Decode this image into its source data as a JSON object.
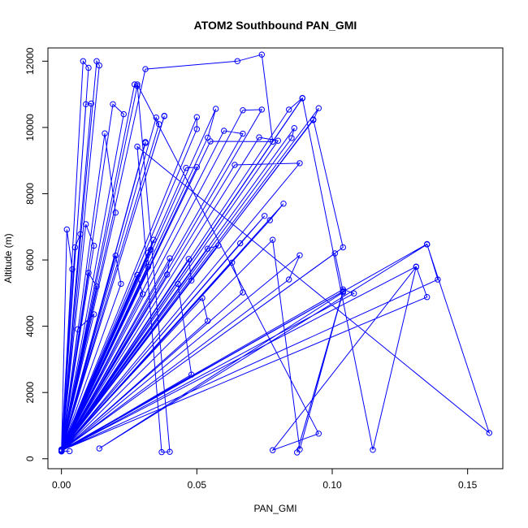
{
  "chart_data": {
    "type": "line",
    "title": "ATOM2 Southbound PAN_GMI",
    "xlabel": "PAN_GMI",
    "ylabel": "Altitude (m)",
    "xlim": [
      -0.005,
      0.163
    ],
    "ylim": [
      -300,
      12400
    ],
    "x_ticks": [
      0.0,
      0.05,
      0.1,
      0.15
    ],
    "x_tick_labels": [
      "0.00",
      "0.05",
      "0.10",
      "0.15"
    ],
    "y_ticks": [
      0,
      2000,
      4000,
      6000,
      8000,
      10000,
      12000
    ],
    "y_tick_labels": [
      "0",
      "2000",
      "4000",
      "6000",
      "8000",
      "10000",
      "12000"
    ],
    "grid": false,
    "legend": "none",
    "line_color": "#0000ff",
    "marker": "open-circle",
    "series": [
      {
        "points": [
          [
            0.0,
            250
          ],
          [
            0.008,
            12000
          ],
          [
            0.01,
            11800
          ],
          [
            0.0,
            280
          ],
          [
            0.013,
            12000
          ],
          [
            0.014,
            11870
          ],
          [
            0.0,
            230
          ],
          [
            0.009,
            10700
          ],
          [
            0.011,
            10720
          ],
          [
            0.0,
            260
          ],
          [
            0.019,
            10700
          ],
          [
            0.023,
            10400
          ],
          [
            0.0,
            240
          ],
          [
            0.027,
            11300
          ],
          [
            0.028,
            11250
          ],
          [
            0.0,
            270
          ],
          [
            0.031,
            11760
          ],
          [
            0.065,
            12000
          ],
          [
            0.074,
            12200
          ],
          [
            0.078,
            9570
          ],
          [
            0.055,
            9580
          ],
          [
            0.0,
            220
          ],
          [
            0.035,
            10300
          ],
          [
            0.036,
            10100
          ],
          [
            0.0,
            250
          ],
          [
            0.05,
            10310
          ],
          [
            0.05,
            9950
          ],
          [
            0.0,
            260
          ],
          [
            0.054,
            9690
          ],
          [
            0.057,
            10560
          ],
          [
            0.0,
            240
          ],
          [
            0.067,
            10520
          ],
          [
            0.074,
            10540
          ],
          [
            0.0,
            230
          ],
          [
            0.084,
            10540
          ],
          [
            0.089,
            10890
          ],
          [
            0.0,
            250
          ],
          [
            0.095,
            10580
          ],
          [
            0.093,
            10220
          ],
          [
            0.0,
            270
          ],
          [
            0.086,
            9980
          ],
          [
            0.085,
            9680
          ],
          [
            0.0,
            260
          ],
          [
            0.08,
            9600
          ],
          [
            0.073,
            9700
          ],
          [
            0.0,
            240
          ],
          [
            0.067,
            9810
          ],
          [
            0.06,
            9900
          ],
          [
            0.0,
            250
          ],
          [
            0.05,
            8800
          ],
          [
            0.046,
            8780
          ],
          [
            0.0,
            230
          ],
          [
            0.064,
            8870
          ],
          [
            0.088,
            8920
          ],
          [
            0.0,
            240
          ],
          [
            0.082,
            7700
          ],
          [
            0.077,
            7200
          ],
          [
            0.0,
            260
          ],
          [
            0.075,
            7330
          ],
          [
            0.066,
            6500
          ],
          [
            0.0,
            250
          ],
          [
            0.058,
            6440
          ],
          [
            0.054,
            6340
          ],
          [
            0.0,
            240
          ],
          [
            0.047,
            6030
          ],
          [
            0.048,
            5380
          ],
          [
            0.0,
            260
          ],
          [
            0.052,
            4850
          ],
          [
            0.054,
            4160
          ],
          [
            0.0,
            230
          ],
          [
            0.04,
            6050
          ],
          [
            0.039,
            5560
          ],
          [
            0.0,
            250
          ],
          [
            0.034,
            6610
          ],
          [
            0.033,
            6310
          ],
          [
            0.0,
            240
          ],
          [
            0.032,
            6220
          ],
          [
            0.032,
            5790
          ],
          [
            0.0,
            260
          ],
          [
            0.028,
            5550
          ],
          [
            0.03,
            4970
          ],
          [
            0.0,
            240
          ],
          [
            0.022,
            5280
          ],
          [
            0.02,
            6130
          ],
          [
            0.0,
            250
          ],
          [
            0.013,
            5200
          ],
          [
            0.01,
            5610
          ],
          [
            0.0,
            260
          ],
          [
            0.012,
            4360
          ],
          [
            0.006,
            3910
          ],
          [
            0.0,
            230
          ],
          [
            0.005,
            6380
          ],
          [
            0.007,
            6780
          ],
          [
            0.0,
            250
          ],
          [
            0.004,
            5720
          ],
          [
            0.002,
            6920
          ],
          [
            0.0,
            240
          ],
          [
            0.009,
            7080
          ],
          [
            0.012,
            6430
          ],
          [
            0.0,
            250
          ],
          [
            0.016,
            9820
          ],
          [
            0.02,
            7430
          ],
          [
            0.0,
            260
          ],
          [
            0.031,
            9560
          ],
          [
            0.031,
            9530
          ],
          [
            0.0,
            240
          ],
          [
            0.038,
            10350
          ],
          [
            0.038,
            10340
          ],
          [
            0.0,
            250
          ],
          [
            0.043,
            5280
          ],
          [
            0.048,
            2540
          ],
          [
            0.0,
            230
          ],
          [
            0.063,
            5920
          ],
          [
            0.067,
            5020
          ],
          [
            0.0,
            240
          ],
          [
            0.093,
            10240
          ],
          [
            0.104,
            6380
          ],
          [
            0.0,
            250
          ],
          [
            0.101,
            6200
          ],
          [
            0.104,
            5050
          ],
          [
            0.0,
            260
          ],
          [
            0.104,
            5110
          ],
          [
            0.108,
            4990
          ],
          [
            0.0,
            240
          ],
          [
            0.131,
            5800
          ],
          [
            0.135,
            4880
          ],
          [
            0.0,
            250
          ],
          [
            0.139,
            5410
          ],
          [
            0.135,
            6480
          ],
          [
            0.0,
            240
          ],
          [
            0.084,
            5410
          ],
          [
            0.088,
            6140
          ],
          [
            0.0,
            230
          ],
          [
            0.078,
            6610
          ],
          [
            0.088,
            280
          ],
          [
            0.104,
            5060
          ],
          [
            0.087,
            190
          ],
          [
            0.104,
            5020
          ],
          [
            0.014,
            310
          ],
          [
            0.135,
            6470
          ],
          [
            0.158,
            780
          ],
          [
            0.028,
            9420
          ],
          [
            0.037,
            200
          ],
          [
            0.04,
            210
          ],
          [
            0.028,
            11300
          ],
          [
            0.095,
            760
          ],
          [
            0.078,
            260
          ],
          [
            0.131,
            5790
          ],
          [
            0.115,
            270
          ],
          [
            0.089,
            10880
          ],
          [
            0.0,
            230
          ],
          [
            0.003,
            230
          ]
        ]
      }
    ]
  }
}
